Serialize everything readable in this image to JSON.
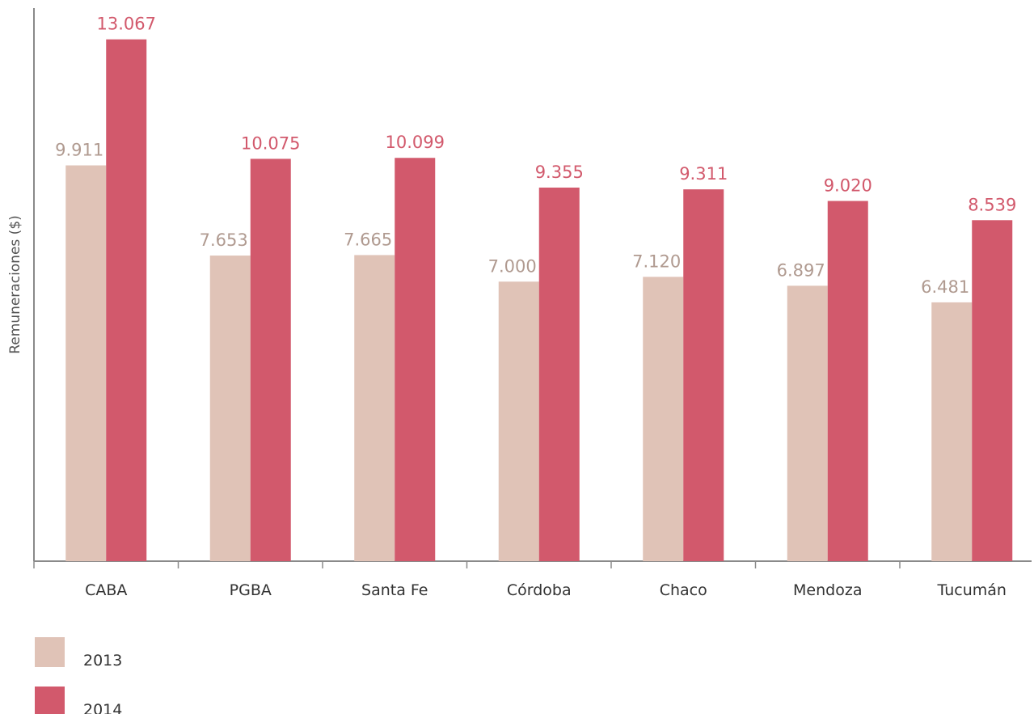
{
  "chart_data": {
    "type": "bar",
    "ylabel": "Remuneraciones ($)",
    "categories": [
      "CABA",
      "PGBA",
      "Santa Fe",
      "Córdoba",
      "Chaco",
      "Mendoza",
      "Tucumán"
    ],
    "series": [
      {
        "name": "2013",
        "color": "#e0c3b7",
        "label_color": "#b09a90",
        "values": [
          9911,
          7653,
          7665,
          7000,
          7120,
          6897,
          6481
        ],
        "labels": [
          "9.911",
          "7.653",
          "7.665",
          "7.000",
          "7.120",
          "6.897",
          "6.481"
        ]
      },
      {
        "name": "2014",
        "color": "#d2596c",
        "label_color": "#d2596c",
        "values": [
          13067,
          10075,
          10099,
          9355,
          9311,
          9020,
          8539
        ],
        "labels": [
          "13.067",
          "10.075",
          "10.099",
          "9.355",
          "9.311",
          "9.020",
          "8.539"
        ]
      }
    ],
    "ylim": [
      0,
      13850
    ],
    "grid": false,
    "legend_position": "bottom-left"
  }
}
